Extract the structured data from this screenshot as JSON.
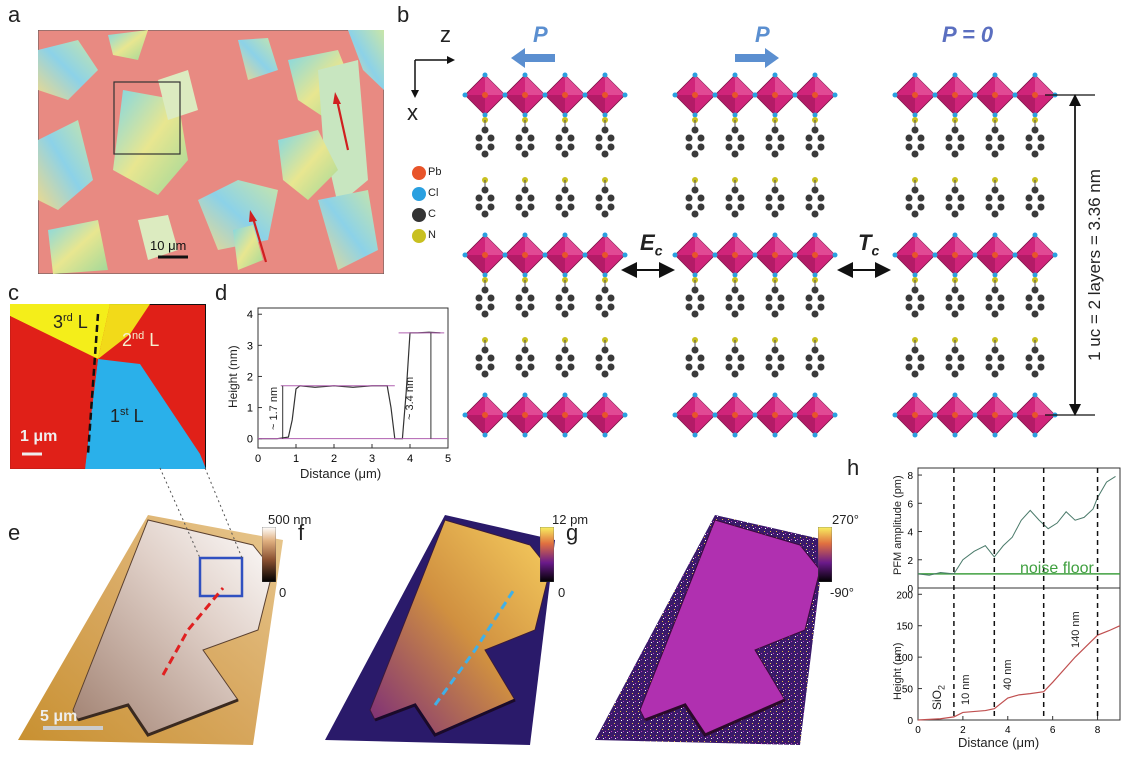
{
  "panel_labels": {
    "a": "a",
    "b": "b",
    "c": "c",
    "d": "d",
    "e": "e",
    "f": "f",
    "g": "g",
    "h": "h"
  },
  "panel_a": {
    "scale": "10 μm"
  },
  "panel_b": {
    "axis_z": "z",
    "axis_x": "x",
    "p_left": "P",
    "p_mid": "P",
    "p_zero": "P = 0",
    "legend": [
      {
        "sym": "Pb",
        "color": "#e8542a"
      },
      {
        "sym": "Cl",
        "color": "#2aa0e0"
      },
      {
        "sym": "C",
        "color": "#333333"
      },
      {
        "sym": "N",
        "color": "#c8c020"
      }
    ],
    "ec": "E",
    "ec_sub": "c",
    "tc": "T",
    "tc_sub": "c",
    "uc_label": "1 uc = 2 layers = 3.36 nm"
  },
  "panel_c": {
    "l3": "3",
    "l3_sup": "rd",
    "l2": "2",
    "l2_sup": "nd",
    "l1": "1",
    "l1_sup": "st",
    "l_suffix": " L",
    "scale": "1 μm"
  },
  "panel_d": {
    "ylabel": "Height (nm)",
    "xlabel": "Distance (μm)",
    "ann1": "~ 1.7 nm",
    "ann2": "~ 3.4 nm",
    "yticks": [
      "0",
      "1",
      "2",
      "3",
      "4"
    ],
    "xticks": [
      "0",
      "1",
      "2",
      "3",
      "4",
      "5"
    ]
  },
  "panel_e": {
    "scale": "5 μm",
    "cb_top": "500 nm",
    "cb_bot": "0"
  },
  "panel_f": {
    "cb_top": "12 pm",
    "cb_bot": "0"
  },
  "panel_g": {
    "cb_top": "270°",
    "cb_bot": "-90°"
  },
  "panel_h": {
    "top_ylabel": "PFM amplitude (pm)",
    "bot_ylabel": "Height (nm)",
    "xlabel": "Distance (μm)",
    "noise": "noise floor",
    "sio2": "SiO",
    "sio2_sub": "2",
    "t10": "10 nm",
    "t40": "40 nm",
    "t140": "140 nm",
    "top_yticks": [
      "0",
      "2",
      "4",
      "6",
      "8"
    ],
    "bot_yticks": [
      "0",
      "50",
      "100",
      "150",
      "200"
    ],
    "xticks": [
      "0",
      "2",
      "4",
      "6",
      "8"
    ]
  },
  "chart_data": [
    {
      "type": "line",
      "xlabel": "Distance (μm)",
      "ylabel": "Height (nm)",
      "xlim": [
        0,
        5
      ],
      "ylim": [
        -0.3,
        4.2
      ],
      "x": [
        0,
        0.5,
        0.8,
        0.9,
        1.0,
        1.1,
        1.5,
        2.0,
        2.5,
        3.0,
        3.4,
        3.5,
        3.6,
        3.8,
        3.9,
        4.0,
        4.2,
        4.5,
        4.8
      ],
      "y": [
        0,
        0,
        0.05,
        0.6,
        1.6,
        1.7,
        1.65,
        1.7,
        1.65,
        1.7,
        1.7,
        1.0,
        0,
        0,
        1.5,
        3.4,
        3.4,
        3.42,
        3.4
      ]
    },
    {
      "type": "line",
      "xlabel": "Distance (μm)",
      "ylabel": "PFM amplitude (pm)",
      "xlim": [
        0,
        9
      ],
      "ylim": [
        0,
        8.5
      ],
      "x": [
        0,
        0.5,
        1.0,
        1.6,
        2.0,
        2.5,
        3.0,
        3.4,
        3.8,
        4.2,
        4.6,
        5.0,
        5.4,
        5.8,
        6.2,
        6.6,
        7.0,
        7.4,
        7.8,
        8.0,
        8.4,
        8.8
      ],
      "y": [
        1.0,
        0.9,
        1.1,
        1.0,
        2.0,
        2.6,
        3.0,
        2.2,
        3.0,
        3.6,
        4.8,
        5.5,
        4.8,
        4.2,
        4.6,
        5.4,
        4.8,
        5.0,
        5.6,
        6.4,
        7.5,
        7.9
      ]
    },
    {
      "type": "line",
      "xlabel": "Distance (μm)",
      "ylabel": "Height (nm)",
      "xlim": [
        0,
        9
      ],
      "ylim": [
        0,
        210
      ],
      "x": [
        0,
        1,
        1.6,
        2.0,
        3.0,
        3.4,
        4.0,
        4.5,
        5.0,
        5.6,
        6.0,
        7.0,
        8.0,
        8.5,
        9.0
      ],
      "y": [
        0,
        2,
        5,
        12,
        15,
        18,
        35,
        40,
        42,
        45,
        60,
        100,
        135,
        142,
        150
      ]
    }
  ]
}
